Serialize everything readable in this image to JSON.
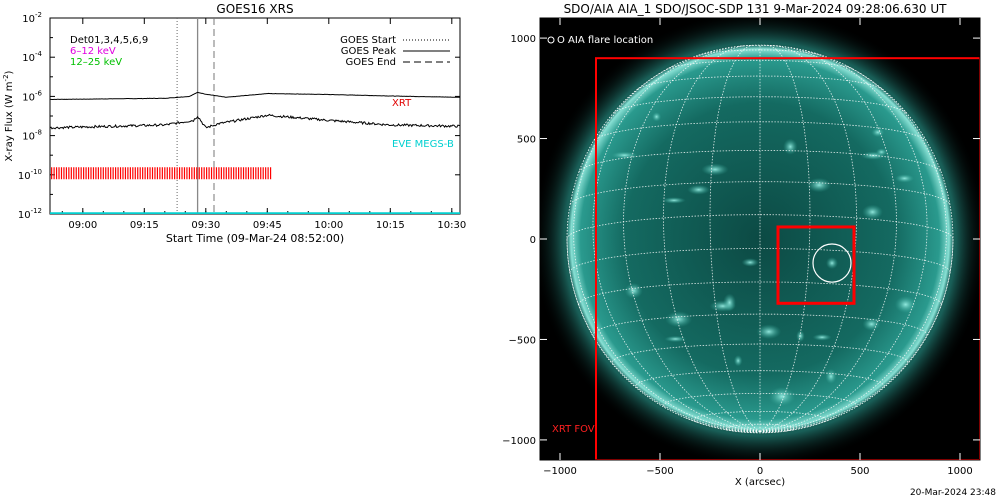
{
  "chart_data": [
    {
      "type": "line",
      "title": "GOES16 XRS",
      "xlabel": "Start Time (09-Mar-24 08:52:00)",
      "ylabel": "X-ray Flux (W m",
      "ylabel_sup": "-2",
      "ylabel_end": ")",
      "y_scale": "log",
      "ylim": [
        "1e-12",
        "1e-2"
      ],
      "xlim": [
        "08:52",
        "10:32"
      ],
      "yticks": [
        {
          "mant": "10",
          "exp": "-2",
          "value": "1e-2"
        },
        {
          "mant": "10",
          "exp": "-4",
          "value": "1e-4"
        },
        {
          "mant": "10",
          "exp": "-6",
          "value": "1e-6"
        },
        {
          "mant": "10",
          "exp": "-8",
          "value": "1e-8"
        },
        {
          "mant": "10",
          "exp": "-10",
          "value": "1e-10"
        },
        {
          "mant": "10",
          "exp": "-12",
          "value": "1e-12"
        }
      ],
      "xticks": [
        "09:00",
        "09:15",
        "09:30",
        "09:45",
        "10:00",
        "10:15",
        "10:30"
      ],
      "events": {
        "start": {
          "label": "GOES Start",
          "time": "09:23"
        },
        "peak": {
          "label": "GOES Peak",
          "time": "09:28"
        },
        "end": {
          "label": "GOES End",
          "time": "09:32"
        }
      },
      "legend_left": {
        "dets": "Det01,3,4,5,6,9",
        "band1": "6–12 keV",
        "band2": "12–25 keV"
      },
      "series": [
        {
          "name": "XRT",
          "color": "#000000",
          "points": [
            [
              "08:52",
              "7e-7"
            ],
            [
              "09:20",
              "8e-7"
            ],
            [
              "09:26",
              "1.0e-6"
            ],
            [
              "09:28",
              "1.6e-6"
            ],
            [
              "09:30",
              "1.3e-6"
            ],
            [
              "09:35",
              "9e-7"
            ],
            [
              "09:45",
              "1.4e-6"
            ],
            [
              "10:00",
              "1.25e-6"
            ],
            [
              "10:15",
              "1.05e-6"
            ],
            [
              "10:32",
              "9e-7"
            ]
          ]
        },
        {
          "name": "",
          "color": "#000000",
          "points": [
            [
              "08:52",
              "2.5e-8"
            ],
            [
              "09:20",
              "3.5e-8"
            ],
            [
              "09:27",
              "6e-8"
            ],
            [
              "09:28",
              "1.0e-7"
            ],
            [
              "09:30",
              "2.5e-8"
            ],
            [
              "09:33",
              "4e-8"
            ],
            [
              "09:45",
              "1.1e-7"
            ],
            [
              "10:00",
              "6e-8"
            ],
            [
              "10:15",
              "3.5e-8"
            ],
            [
              "10:32",
              "3e-8"
            ]
          ]
        },
        {
          "name": "EVE MEGS-B",
          "color": "#00d0d0",
          "points": [
            [
              "08:52",
              "1.1e-12"
            ],
            [
              "10:32",
              "1.1e-12"
            ]
          ]
        }
      ],
      "xrt_obs": {
        "color": "#ff0000",
        "flux": "1.2e-10",
        "from": "08:52",
        "to": "09:46"
      }
    },
    {
      "type": "image",
      "title": "SDO/AIA AIA_1 SDO/JSOC-SDP 131  9-Mar-2024 09:28:06.630 UT",
      "xlabel": "X (arcsec)",
      "ylabel": "",
      "xlim": [
        -1100,
        1100
      ],
      "ylim": [
        -1100,
        1100
      ],
      "xticks": [
        "−1000",
        "−500",
        "0",
        "500",
        "1000"
      ],
      "yticks": [
        "1000",
        "500",
        "0",
        "−500",
        "−1000"
      ],
      "xtick_values": [
        -1000,
        -500,
        0,
        500,
        1000
      ],
      "ytick_values": [
        1000,
        500,
        0,
        -500,
        -1000
      ],
      "solar_radius": 965,
      "flare_legend": "O AIA flare location",
      "flare": {
        "x": 360,
        "y": -120,
        "r": 95
      },
      "box_small": {
        "x0": 90,
        "x1": 470,
        "y0": -320,
        "y1": 60
      },
      "xrt_fov": {
        "label": "XRT FOV",
        "x0": -820,
        "x1": 1100,
        "y0": -1100,
        "y1": 900
      }
    }
  ],
  "footer": {
    "timestamp": "20-Mar-2024 23:48"
  }
}
